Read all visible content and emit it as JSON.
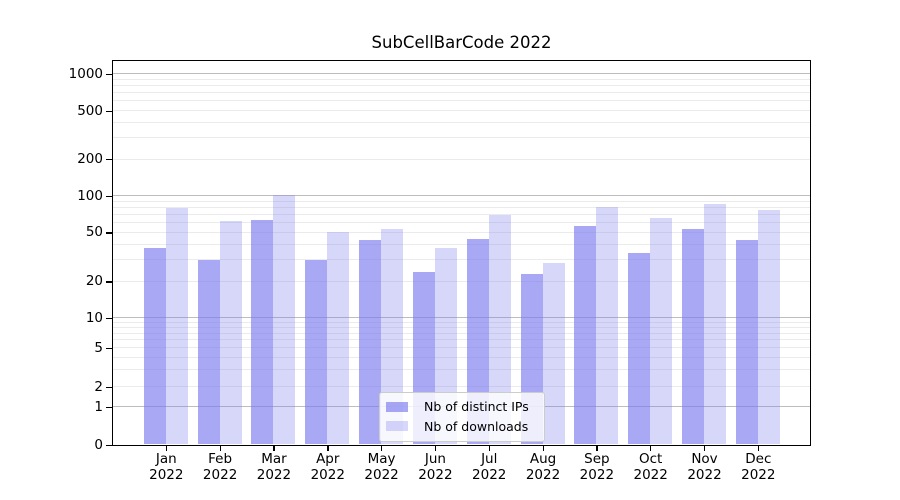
{
  "chart_data": {
    "type": "bar",
    "title": "SubCellBarCode 2022",
    "categories": [
      "Jan 2022",
      "Feb 2022",
      "Mar 2022",
      "Apr 2022",
      "May 2022",
      "Jun 2022",
      "Jul 2022",
      "Aug 2022",
      "Sep 2022",
      "Oct 2022",
      "Nov 2022",
      "Dec 2022"
    ],
    "series": [
      {
        "name": "Nb of distinct IPs",
        "color": "rgba(122,122,238,0.65)",
        "values": [
          37,
          30,
          63,
          30,
          43,
          24,
          44,
          23,
          56,
          34,
          53,
          43
        ]
      },
      {
        "name": "Nb of downloads",
        "color": "rgba(122,122,238,0.30)",
        "values": [
          79,
          62,
          102,
          50,
          53,
          37,
          70,
          28,
          81,
          66,
          86,
          76
        ]
      }
    ],
    "xlabel": "",
    "ylabel": "",
    "yscale": "symlog",
    "y_ticks": [
      0,
      1,
      2,
      5,
      10,
      20,
      50,
      100,
      200,
      500,
      1000
    ],
    "ylim": [
      0,
      1300
    ],
    "grid": "horizontal major and minor gridlines",
    "legend_position": "lower center",
    "colors": {
      "bar_base": "#7a7aee",
      "major_grid": "#bdbdbd",
      "minor_grid": "#ebebeb",
      "axis": "#000000"
    }
  }
}
